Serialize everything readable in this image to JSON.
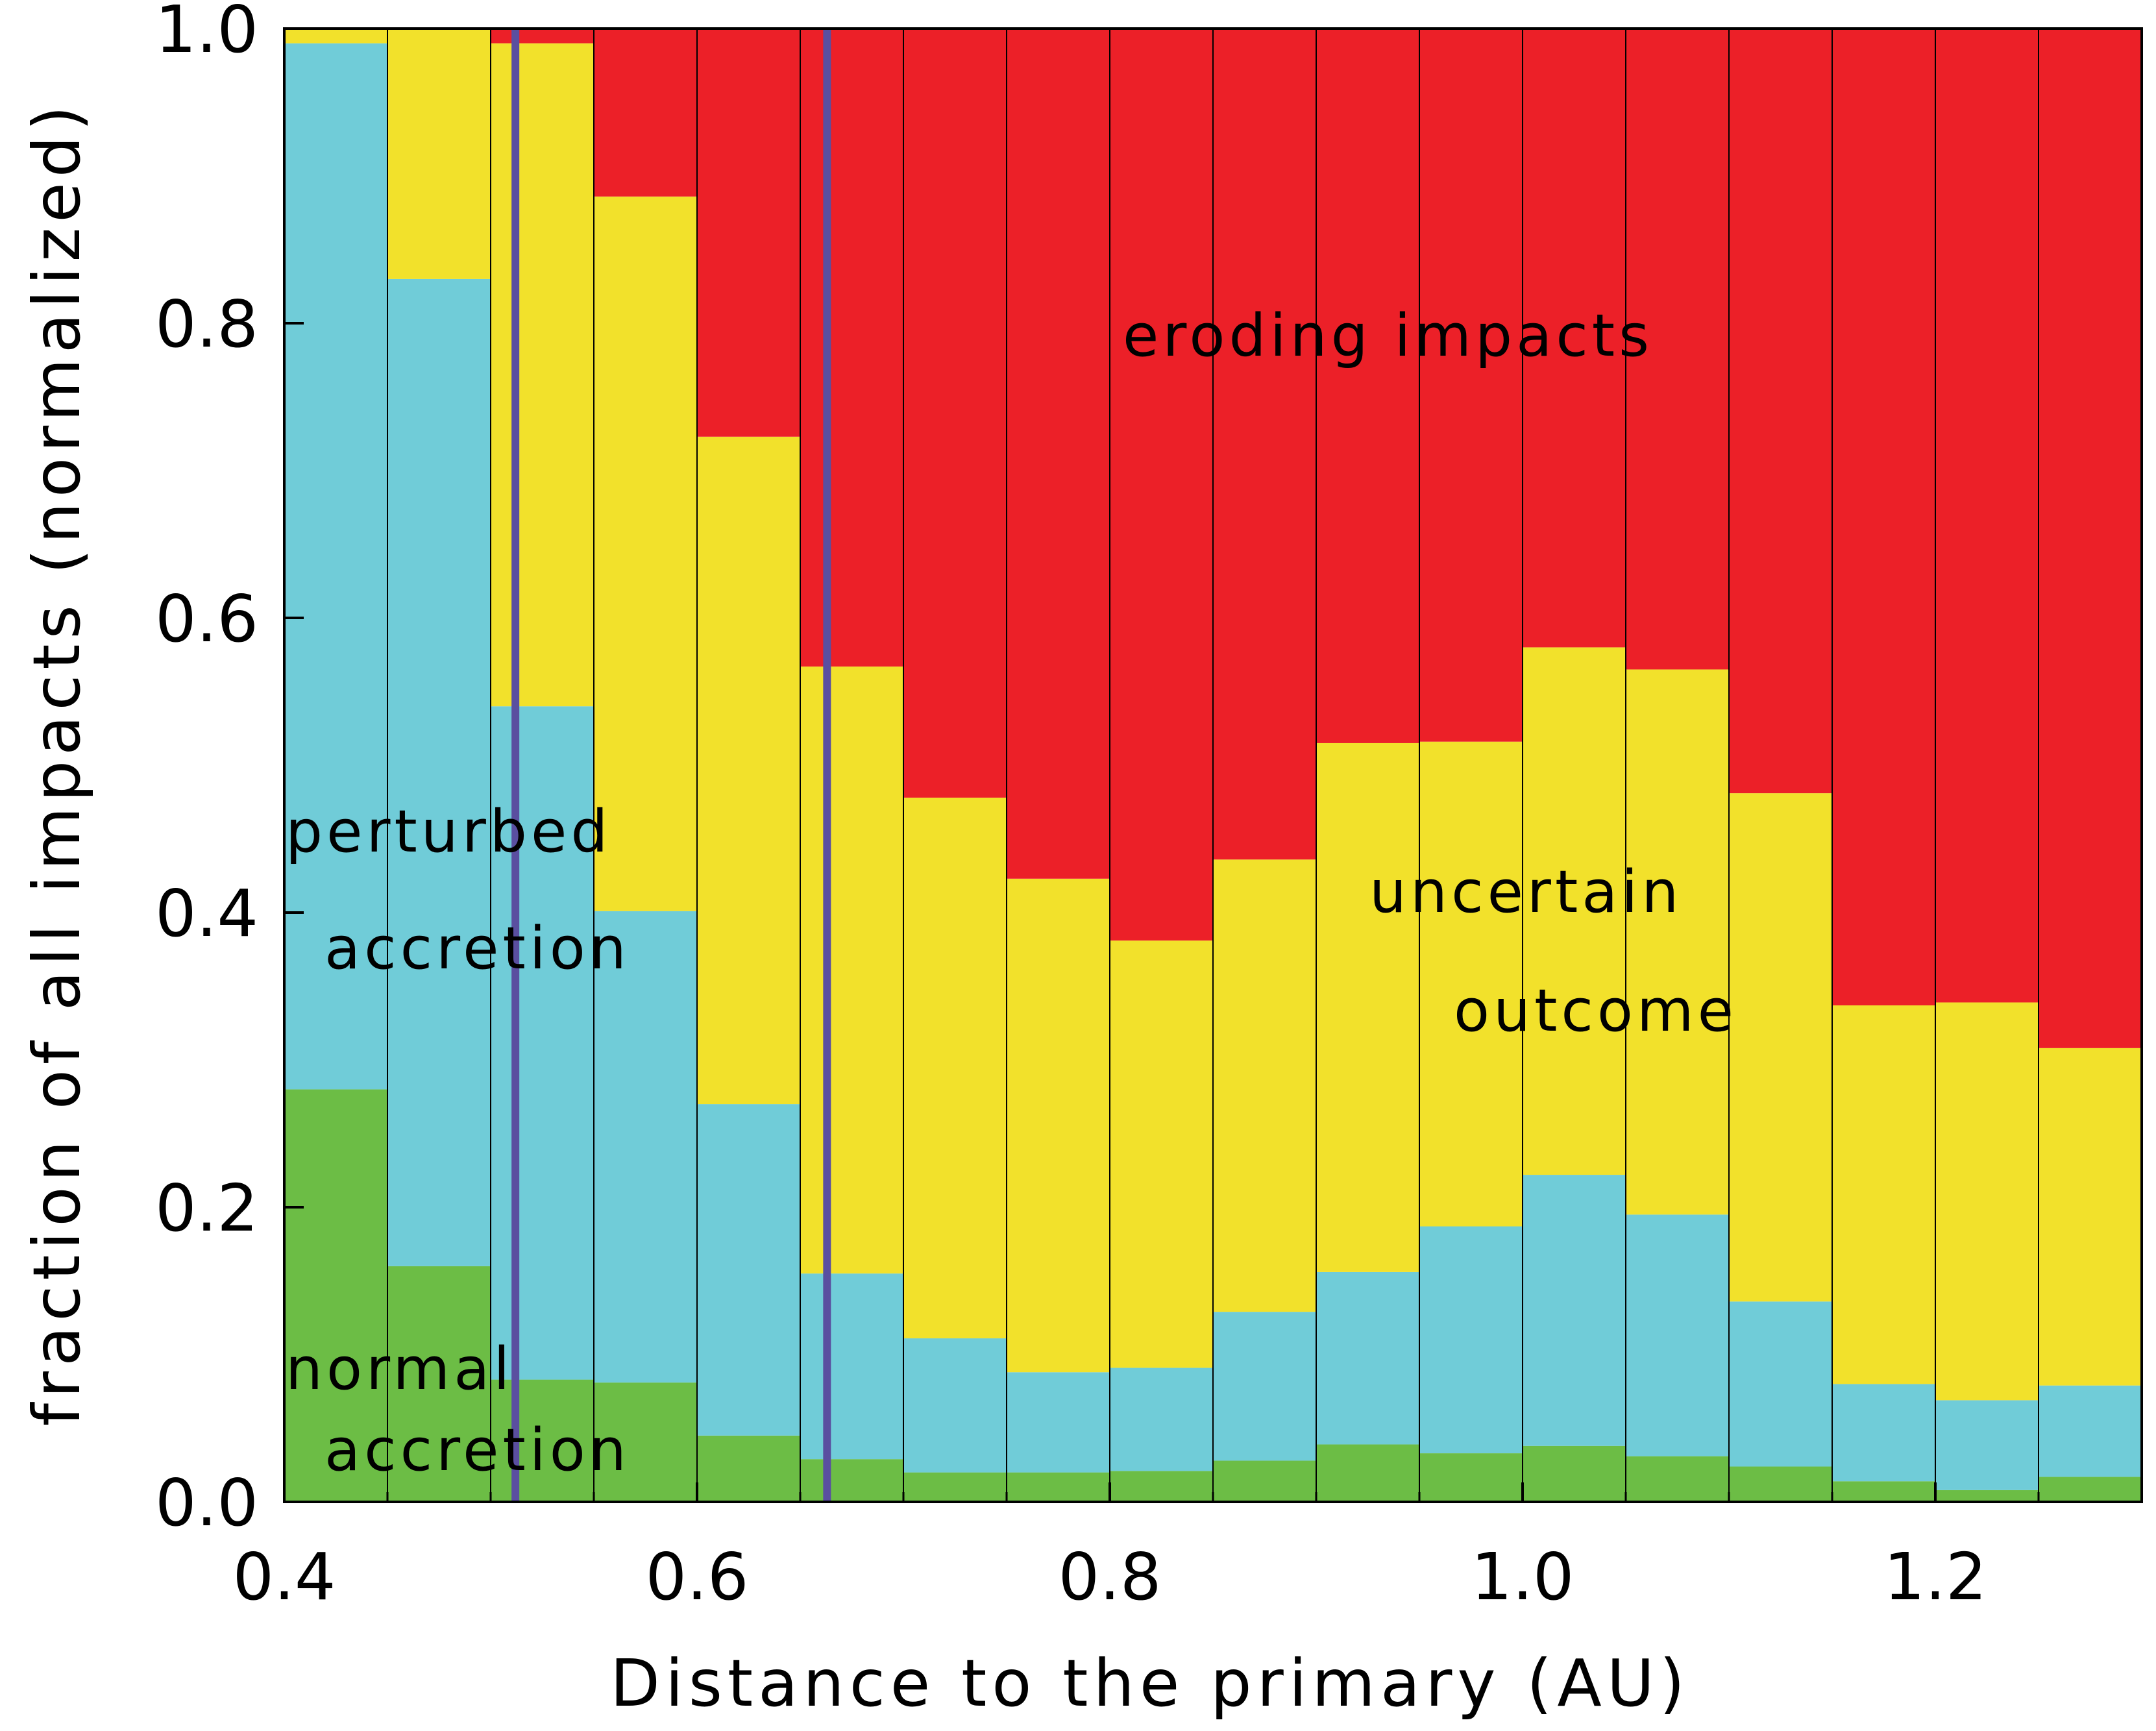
{
  "chart_data": {
    "type": "bar",
    "stacked": true,
    "normalized": true,
    "title": "",
    "xlabel": "Distance to the primary (AU)",
    "ylabel": "fraction of all impacts (normalized)",
    "xlim": [
      0.4,
      1.3
    ],
    "ylim": [
      0.0,
      1.0
    ],
    "bin_width": 0.05,
    "bin_edges_start": [
      0.4,
      0.45,
      0.5,
      0.55,
      0.6,
      0.65,
      0.7,
      0.75,
      0.8,
      0.85,
      0.9,
      0.95,
      1.0,
      1.05,
      1.1,
      1.15,
      1.2,
      1.25
    ],
    "xticks": [
      0.4,
      0.6,
      0.8,
      1.0,
      1.2
    ],
    "xtick_labels": [
      "0.4",
      "0.6",
      "0.8",
      "1.0",
      "1.2"
    ],
    "yticks": [
      0.0,
      0.2,
      0.4,
      0.6,
      0.8,
      1.0
    ],
    "ytick_labels": [
      "0.0",
      "0.2",
      "0.4",
      "0.6",
      "0.8",
      "1.0"
    ],
    "series": [
      {
        "name": "normal accretion",
        "color": "#6cbd45",
        "values": [
          0.28,
          0.16,
          0.083,
          0.081,
          0.045,
          0.029,
          0.02,
          0.02,
          0.021,
          0.028,
          0.039,
          0.033,
          0.038,
          0.031,
          0.024,
          0.014,
          0.008,
          0.017
        ]
      },
      {
        "name": "perturbed accretion",
        "color": "#70ccd8",
        "values": [
          0.71,
          0.67,
          0.457,
          0.32,
          0.225,
          0.126,
          0.091,
          0.068,
          0.07,
          0.101,
          0.117,
          0.154,
          0.184,
          0.164,
          0.112,
          0.066,
          0.061,
          0.062
        ]
      },
      {
        "name": "uncertain outcome",
        "color": "#f2e12b",
        "values": [
          0.01,
          0.17,
          0.45,
          0.485,
          0.453,
          0.412,
          0.367,
          0.335,
          0.29,
          0.307,
          0.359,
          0.329,
          0.358,
          0.37,
          0.345,
          0.257,
          0.27,
          0.229
        ]
      },
      {
        "name": "eroding impacts",
        "color": "#ec2028",
        "values": [
          0.0,
          0.0,
          0.01,
          0.114,
          0.277,
          0.433,
          0.522,
          0.577,
          0.619,
          0.564,
          0.485,
          0.484,
          0.42,
          0.435,
          0.519,
          0.663,
          0.661,
          0.692
        ]
      }
    ],
    "vertical_lines": [
      {
        "x": 0.512,
        "color": "#5a4fa0"
      },
      {
        "x": 0.663,
        "color": "#5a4fa0"
      }
    ],
    "annotations": {
      "eroding": "eroding impacts",
      "uncertain_1": "uncertain",
      "uncertain_2": "outcome",
      "perturbed_1": "perturbed",
      "perturbed_2": "accretion",
      "normal_1": "normal",
      "normal_2": "accretion"
    }
  }
}
